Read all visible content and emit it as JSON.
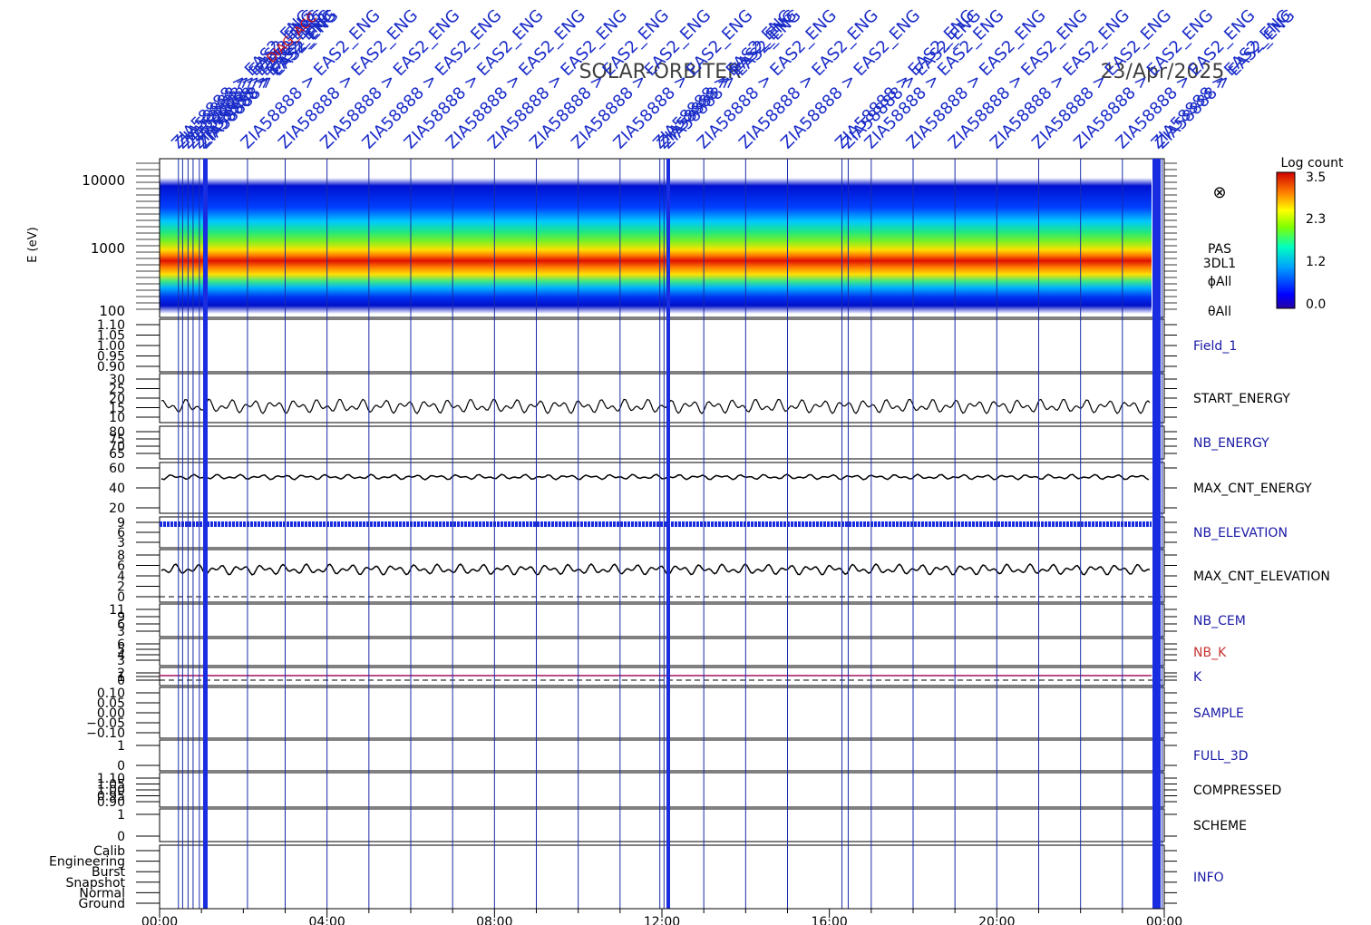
{
  "header": {
    "mission": "SOLAR-ORBITER",
    "date": "23/Apr/2025",
    "event_label": "ZIA58888 > EAS2_ENG",
    "event_label_red": "DIAG_ACC"
  },
  "colorbar": {
    "title": "Log count",
    "ticks": [
      "3.5",
      "2.3",
      "1.2",
      "0.0"
    ]
  },
  "side_symbol": "⊗",
  "spectrogram": {
    "ylabel": "E (eV)",
    "yticks": [
      "10000",
      "1000",
      "100"
    ],
    "labels": [
      "PAS",
      "3DL1",
      "ϕAll",
      "θAll"
    ]
  },
  "panels": [
    {
      "label": "Field_1",
      "color": "#1a1aa6",
      "ticks": [
        "1.10",
        "1.05",
        "1.00",
        "0.95",
        "0.90"
      ]
    },
    {
      "label": "START_ENERGY",
      "color": "#000000",
      "ticks": [
        "30",
        "25",
        "20",
        "15",
        "10"
      ]
    },
    {
      "label": "NB_ENERGY",
      "color": "#1a1aa6",
      "ticks": [
        "80",
        "75",
        "70",
        "65"
      ]
    },
    {
      "label": "MAX_CNT_ENERGY",
      "color": "#000000",
      "ticks": [
        "60",
        "40",
        "20"
      ]
    },
    {
      "label": "NB_ELEVATION",
      "color": "#1a1aa6",
      "ticks": [
        "9",
        "6",
        "3"
      ]
    },
    {
      "label": "MAX_CNT_ELEVATION",
      "color": "#000000",
      "ticks": [
        "8",
        "6",
        "4",
        "2",
        "0"
      ]
    },
    {
      "label": "NB_CEM",
      "color": "#1a1aa6",
      "ticks": [
        "11",
        "9",
        "6",
        "3"
      ]
    },
    {
      "label": "NB_K",
      "color": "#c83232",
      "ticks": [
        "6",
        "5",
        "4",
        "3"
      ]
    },
    {
      "label": "K",
      "color": "#1a1aa6",
      "ticks": [
        "2",
        "1",
        "0"
      ]
    },
    {
      "label": "SAMPLE",
      "color": "#1a1aa6",
      "ticks": [
        "0.10",
        "0.05",
        "0.00",
        "−0.05",
        "−0.10"
      ]
    },
    {
      "label": "FULL_3D",
      "color": "#1a1aa6",
      "ticks": [
        "1",
        "0"
      ]
    },
    {
      "label": "COMPRESSED",
      "color": "#000000",
      "ticks": [
        "1.10",
        "1.05",
        "1.00",
        "0.95",
        "0.90"
      ]
    },
    {
      "label": "SCHEME",
      "color": "#000000",
      "ticks": [
        "1",
        "0"
      ]
    },
    {
      "label": "INFO",
      "color": "#1a1aa6",
      "ticks": [
        "Calib",
        "Engineering",
        "Burst",
        "Snapshot",
        "Normal",
        "Ground"
      ]
    }
  ],
  "chart_data": {
    "type": "heatmap",
    "x_ticks": [
      "00:00",
      "04:00",
      "08:00",
      "12:00",
      "16:00",
      "20:00",
      "00:00"
    ],
    "x_range_hours": [
      0,
      24
    ],
    "y_log_range_eV": [
      100,
      14000
    ],
    "event_times_hours": [
      0.45,
      0.55,
      0.68,
      0.8,
      0.95,
      1.05,
      1.1,
      2.1,
      3.0,
      4.0,
      5.0,
      6.0,
      7.0,
      8.0,
      9.0,
      10.0,
      11.0,
      11.95,
      12.05,
      12.15,
      13.0,
      14.0,
      15.0,
      16.3,
      16.45,
      17.0,
      18.0,
      19.0,
      20.0,
      21.0,
      22.0,
      23.0,
      23.85,
      23.95
    ],
    "max_cnt_energy_level": 58,
    "max_cnt_elevation_level": 5,
    "nb_elevation_level": 9
  }
}
